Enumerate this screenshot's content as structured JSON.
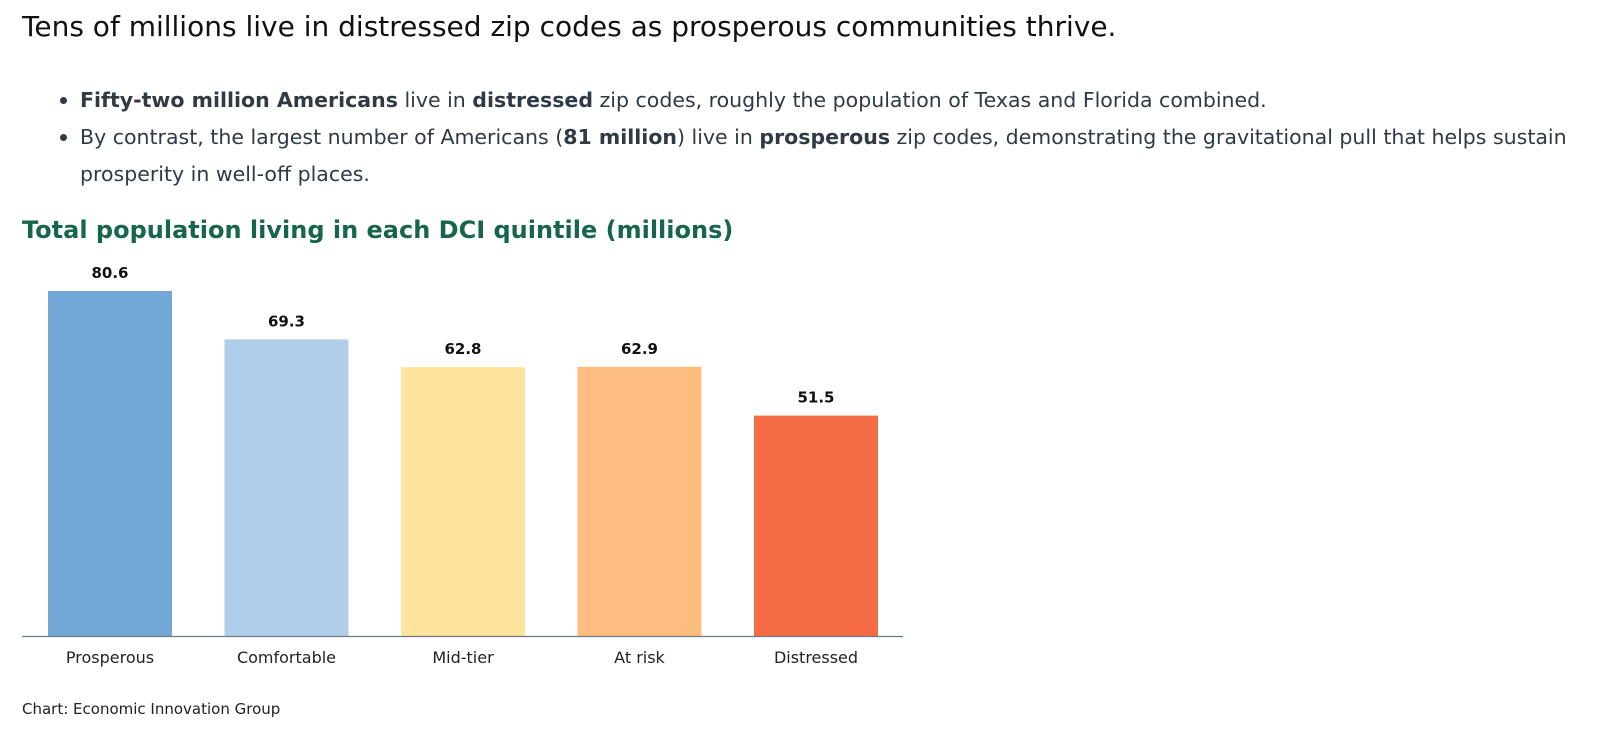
{
  "headline": "Tens of millions live in distressed zip codes as prosperous communities thrive.",
  "bullets": [
    {
      "parts": [
        {
          "text": "Fifty-two million Americans",
          "bold": true
        },
        {
          "text": " live in ",
          "bold": false
        },
        {
          "text": "distressed",
          "bold": true
        },
        {
          "text": " zip codes, roughly the population of Texas and Florida combined.",
          "bold": false
        }
      ]
    },
    {
      "parts": [
        {
          "text": "By contrast, the largest number of Americans (",
          "bold": false
        },
        {
          "text": "81 million",
          "bold": true
        },
        {
          "text": ") live in ",
          "bold": false
        },
        {
          "text": "prosperous",
          "bold": true
        },
        {
          "text": " zip codes, demonstrating the gravitational pull that helps sustain prosperity in well-off places.",
          "bold": false
        }
      ]
    }
  ],
  "chart_data": {
    "type": "bar",
    "title": "Total population living in each DCI quintile (millions)",
    "categories": [
      "Prosperous",
      "Comfortable",
      "Mid-tier",
      "At risk",
      "Distressed"
    ],
    "values": [
      80.6,
      69.3,
      62.8,
      62.9,
      51.5
    ],
    "value_labels": [
      "80.6",
      "69.3",
      "62.8",
      "62.9",
      "51.5"
    ],
    "colors": [
      "#72a7d8",
      "#b0ceea",
      "#fde39b",
      "#fdbc80",
      "#f46c46"
    ],
    "baseline_color": "#6b7a85",
    "ylim": [
      0,
      80.6
    ],
    "grid": false,
    "legend": "none",
    "source": "Chart: Economic Innovation Group"
  }
}
